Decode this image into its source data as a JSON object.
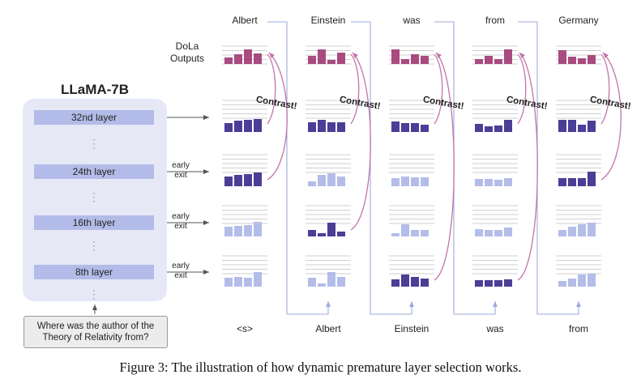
{
  "model": {
    "title": "LLaMA-7B",
    "layers": [
      "32nd layer",
      "24th layer",
      "16th layer",
      "8th layer"
    ],
    "question": "Where was the author of the Theory of Relativity from?"
  },
  "dola_label": "DoLa Outputs",
  "early_exit_label": "early exit",
  "contrast_label": "Contrast!",
  "output_tokens": [
    "Albert",
    "Einstein",
    "was",
    "from",
    "Germany"
  ],
  "input_tokens": [
    "<s>",
    "Albert",
    "Einstein",
    "was",
    "from"
  ],
  "caption": "Figure 3: The illustration of how dynamic premature layer selection works.",
  "colors": {
    "dola_bar": "#a94a80",
    "dark_bar": "#4b3e96",
    "light_bar": "#b4bde8",
    "contrast_arrow": "#c274a9",
    "flow_line": "#9ea9dd",
    "model_bg": "#e6e8f6"
  },
  "distributions": {
    "columns": [
      {
        "dola": [
          0.4,
          0.6,
          0.9,
          0.65
        ],
        "layers": [
          {
            "style": "dark",
            "values": [
              0.55,
              0.7,
              0.75,
              0.8
            ]
          },
          {
            "style": "dark",
            "values": [
              0.6,
              0.7,
              0.75,
              0.85
            ]
          },
          {
            "style": "light",
            "values": [
              0.6,
              0.65,
              0.7,
              0.9
            ]
          },
          {
            "style": "light",
            "values": [
              0.55,
              0.6,
              0.55,
              0.9
            ]
          }
        ]
      },
      {
        "dola": [
          0.5,
          0.9,
          0.25,
          0.7
        ],
        "layers": [
          {
            "style": "dark",
            "values": [
              0.6,
              0.75,
              0.6,
              0.6
            ]
          },
          {
            "style": "light",
            "values": [
              0.3,
              0.7,
              0.8,
              0.6
            ]
          },
          {
            "style": "dark",
            "values": [
              0.4,
              0.2,
              0.85,
              0.3
            ]
          },
          {
            "style": "light",
            "values": [
              0.55,
              0.2,
              0.9,
              0.6
            ]
          }
        ]
      },
      {
        "dola": [
          0.9,
          0.3,
          0.6,
          0.5
        ],
        "layers": [
          {
            "style": "dark",
            "values": [
              0.65,
              0.55,
              0.55,
              0.45
            ]
          },
          {
            "style": "light",
            "values": [
              0.5,
              0.6,
              0.55,
              0.55
            ]
          },
          {
            "style": "light",
            "values": [
              0.2,
              0.75,
              0.4,
              0.4
            ]
          },
          {
            "style": "dark",
            "values": [
              0.45,
              0.75,
              0.6,
              0.5
            ]
          }
        ]
      },
      {
        "dola": [
          0.3,
          0.5,
          0.3,
          0.9
        ],
        "layers": [
          {
            "style": "dark",
            "values": [
              0.5,
              0.35,
              0.4,
              0.75
            ]
          },
          {
            "style": "light",
            "values": [
              0.45,
              0.45,
              0.4,
              0.5
            ]
          },
          {
            "style": "light",
            "values": [
              0.45,
              0.4,
              0.4,
              0.55
            ]
          },
          {
            "style": "dark",
            "values": [
              0.4,
              0.4,
              0.4,
              0.45
            ]
          }
        ]
      },
      {
        "dola": [
          0.85,
          0.45,
          0.35,
          0.55
        ],
        "layers": [
          {
            "style": "dark",
            "values": [
              0.75,
              0.75,
              0.45,
              0.7
            ]
          },
          {
            "style": "dark",
            "values": [
              0.5,
              0.5,
              0.5,
              0.9
            ]
          },
          {
            "style": "light",
            "values": [
              0.4,
              0.6,
              0.75,
              0.85
            ]
          },
          {
            "style": "light",
            "values": [
              0.35,
              0.5,
              0.75,
              0.8
            ]
          }
        ]
      }
    ]
  }
}
